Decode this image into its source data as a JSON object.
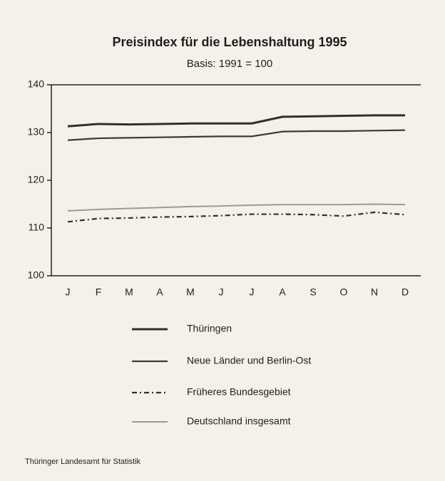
{
  "chart_data": {
    "type": "line",
    "title": "Preisindex für die Lebenshaltung 1995",
    "subtitle": "Basis: 1991 = 100",
    "source": "Thüringer Landesamt für Statistik",
    "categories": [
      "J",
      "F",
      "M",
      "A",
      "M",
      "J",
      "J",
      "A",
      "S",
      "O",
      "N",
      "D"
    ],
    "ylim": [
      100,
      140
    ],
    "yticks": [
      100,
      110,
      120,
      130,
      140
    ],
    "grid": false,
    "series": [
      {
        "name": "Thüringen",
        "color": "#2f2f2f",
        "linestyle": "solid",
        "values": [
          131.3,
          131.8,
          131.7,
          131.8,
          131.9,
          131.9,
          131.9,
          133.3,
          133.4,
          133.5,
          133.6,
          133.6
        ]
      },
      {
        "name": "Neue Länder und Berlin-Ost",
        "color": "#3a3a3a",
        "linestyle": "solid",
        "values": [
          128.4,
          128.8,
          128.9,
          129.0,
          129.1,
          129.2,
          129.2,
          130.2,
          130.3,
          130.3,
          130.4,
          130.5
        ]
      },
      {
        "name": "Früheres Bundesgebiet",
        "color": "#2f2f2f",
        "linestyle": "dashdot",
        "values": [
          111.3,
          112.0,
          112.1,
          112.3,
          112.4,
          112.6,
          112.9,
          112.9,
          112.8,
          112.5,
          113.3,
          112.8
        ]
      },
      {
        "name": "Deutschland insgesamt",
        "color": "#9a9a9a",
        "linestyle": "solid",
        "values": [
          113.6,
          113.9,
          114.1,
          114.3,
          114.5,
          114.6,
          114.8,
          114.9,
          114.9,
          114.9,
          115.0,
          114.9
        ]
      }
    ]
  }
}
